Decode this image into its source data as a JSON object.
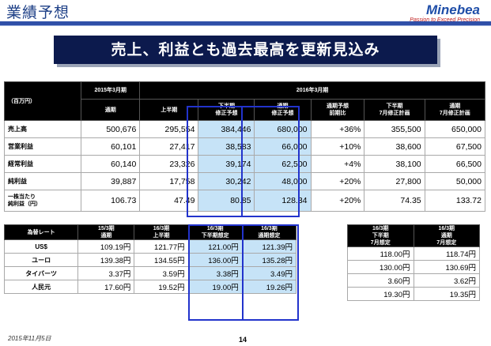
{
  "header": {
    "title": "業績予想",
    "logo_name": "Minebea",
    "logo_tagline": "Passion to Exceed Precision"
  },
  "banner": "売上、利益とも過去最高を更新見込み",
  "forecast": {
    "unit": "（百万円）",
    "group_2015": "2015年3月期",
    "group_2016": "2016年3月期",
    "cols": [
      "通期",
      "上半期",
      "下半期\n修正予想",
      "通期\n修正予想",
      "通期予想\n前期比",
      "下半期\n7月修正計画",
      "通期\n7月修正計画"
    ],
    "rows": [
      {
        "label": "売上高",
        "values": [
          "500,676",
          "295,554",
          "384,446",
          "680,000",
          "+36%",
          "355,500",
          "650,000"
        ]
      },
      {
        "label": "営業利益",
        "values": [
          "60,101",
          "27,417",
          "38,583",
          "66,000",
          "+10%",
          "38,600",
          "67,500"
        ]
      },
      {
        "label": "経常利益",
        "values": [
          "60,140",
          "23,326",
          "39,174",
          "62,500",
          "+4%",
          "38,100",
          "66,500"
        ]
      },
      {
        "label": "純利益",
        "values": [
          "39,887",
          "17,758",
          "30,242",
          "48,000",
          "+20%",
          "27,800",
          "50,000"
        ]
      },
      {
        "label": "一株当たり\n純利益（円）",
        "values": [
          "106.73",
          "47.49",
          "80.85",
          "128.34",
          "+20%",
          "74.35",
          "133.72"
        ]
      }
    ]
  },
  "fx": {
    "header": "為替レート",
    "cols": [
      "15/3期\n通期",
      "16/3期\n上半期",
      "16/3期\n下半期想定",
      "16/3期\n通期想定"
    ],
    "rows": [
      {
        "label": "US$",
        "values": [
          "109.19円",
          "121.77円",
          "121.00円",
          "121.39円"
        ]
      },
      {
        "label": "ユーロ",
        "values": [
          "139.38円",
          "134.55円",
          "136.00円",
          "135.28円"
        ]
      },
      {
        "label": "タイバーツ",
        "values": [
          "3.37円",
          "3.59円",
          "3.38円",
          "3.49円"
        ]
      },
      {
        "label": "人民元",
        "values": [
          "17.60円",
          "19.52円",
          "19.00円",
          "19.26円"
        ]
      }
    ]
  },
  "fx_plan": {
    "cols": [
      "16/3期\n下半期\n7月想定",
      "16/3期\n通期\n7月想定"
    ],
    "rows": [
      [
        "118.00円",
        "118.74円"
      ],
      [
        "130.00円",
        "130.69円"
      ],
      [
        "3.60円",
        "3.62円"
      ],
      [
        "19.30円",
        "19.35円"
      ]
    ]
  },
  "footer": {
    "date": "2015年11月5日",
    "page": "14"
  }
}
